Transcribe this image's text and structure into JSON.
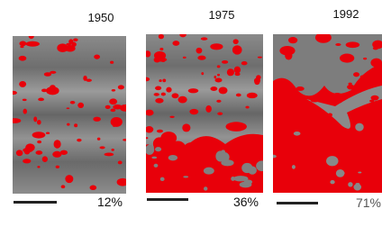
{
  "panels": [
    {
      "year": "1950",
      "percent": "12%"
    },
    {
      "year": "1975",
      "percent": "36%"
    },
    {
      "year": "1992",
      "percent": "71%"
    }
  ]
}
